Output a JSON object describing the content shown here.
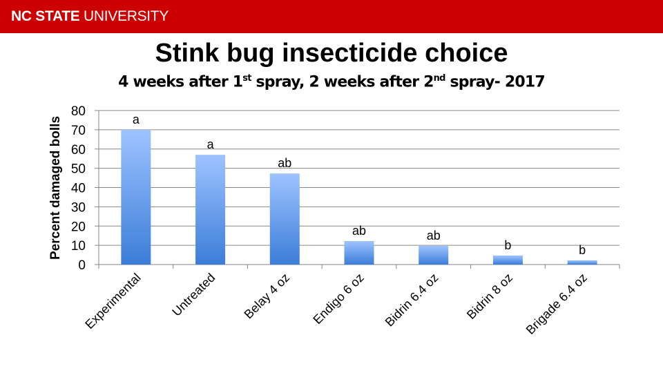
{
  "header": {
    "brand_bold": "NC STATE",
    "brand_light": " UNIVERSITY",
    "color": "#cc0000"
  },
  "slide": {
    "title": "Stink bug insecticide choice",
    "subtitle_parts": [
      "4 weeks after 1",
      "st",
      " spray, 2 weeks after 2",
      "nd",
      " spray- 2017"
    ]
  },
  "chart_data": {
    "type": "bar",
    "title": "Stink bug insecticide choice",
    "subtitle": "4 weeks after 1st spray, 2 weeks after 2nd spray- 2017",
    "xlabel": "",
    "ylabel": "Percent damaged bolls",
    "ylim": [
      0,
      80
    ],
    "yticks": [
      0,
      10,
      20,
      30,
      40,
      50,
      60,
      70,
      80
    ],
    "grid": true,
    "legend": null,
    "categories": [
      "Experimental",
      "Untreated",
      "Belay 4 oz",
      "Endigo 6 oz",
      "Bidrin 6.4 oz",
      "Bidrin 8 oz",
      "Brigade 6.4 oz"
    ],
    "values": [
      70,
      57,
      47.3,
      12.2,
      9.7,
      4.7,
      2.2
    ],
    "annotations": [
      "a",
      "a",
      "ab",
      "ab",
      "ab",
      "b",
      "b"
    ],
    "bar_color_top": "#9ec3ff",
    "bar_color_bottom": "#3b7dd8"
  }
}
